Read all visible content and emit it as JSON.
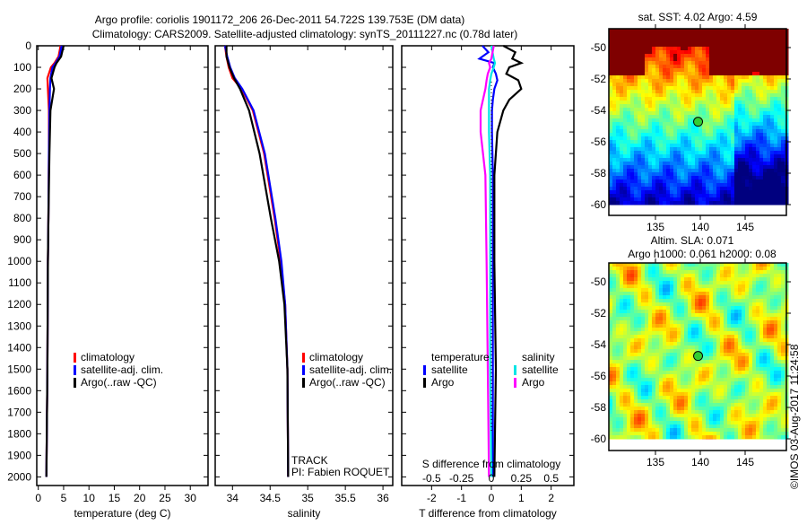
{
  "title_line1": "Argo profile: coriolis 1901172_206 26-Dec-2011 54.722S 139.753E (DM data)",
  "title_line2": "Climatology: CARS2009. Satellite-adjusted climatology: synTS_20111227.nc (0.78d later)",
  "track_label": "TRACK",
  "pi_label": "PI: Fabien ROQUET",
  "credit": "©IMOS 03-Aug-2017 11:24:58",
  "colors": {
    "climatology": "#ff0000",
    "satellite": "#0000ff",
    "argo": "#000000",
    "sal_satellite": "#00e5e5",
    "sal_argo": "#ff00ff"
  },
  "chart_data": [
    {
      "type": "line",
      "id": "temperature",
      "xlabel": "temperature (deg C)",
      "ylabel": "",
      "xlim": [
        -0.3,
        33.5
      ],
      "ylim": [
        2040,
        0
      ],
      "xticks": [
        0,
        5,
        10,
        15,
        20,
        25,
        30
      ],
      "yticks": [
        0,
        100,
        200,
        300,
        400,
        500,
        600,
        700,
        800,
        900,
        1000,
        1100,
        1200,
        1300,
        1400,
        1500,
        1600,
        1700,
        1800,
        1900,
        2000
      ],
      "legend": [
        "climatology",
        "satellite-adj. clim.",
        "Argo(..raw -QC)"
      ],
      "depth": [
        0,
        50,
        80,
        100,
        150,
        200,
        300,
        500,
        800,
        1000,
        1500,
        2000
      ],
      "series": [
        {
          "name": "climatology",
          "values": [
            4.4,
            4.0,
            3.2,
            2.5,
            1.8,
            1.9,
            2.1,
            2.1,
            2.0,
            1.9,
            1.8,
            1.6
          ]
        },
        {
          "name": "satellite-adj. clim.",
          "values": [
            4.6,
            4.2,
            3.4,
            2.8,
            2.4,
            2.3,
            2.2,
            2.1,
            2.0,
            1.9,
            1.8,
            1.6
          ]
        },
        {
          "name": "Argo(..raw -QC)",
          "values": [
            5.0,
            4.5,
            3.6,
            3.2,
            2.6,
            3.1,
            2.4,
            2.2,
            2.0,
            1.9,
            1.8,
            1.6
          ]
        }
      ]
    },
    {
      "type": "line",
      "id": "salinity",
      "xlabel": "salinity",
      "xlim": [
        33.77,
        36.13
      ],
      "ylim": [
        2040,
        0
      ],
      "xticks": [
        34,
        34.5,
        35,
        35.5,
        36
      ],
      "legend": [
        "climatology",
        "satellite-adj. clim.",
        "Argo(..raw -QC)"
      ],
      "depth": [
        0,
        50,
        100,
        150,
        200,
        300,
        500,
        800,
        1000,
        1200,
        1500,
        2000
      ],
      "series": [
        {
          "name": "climatology",
          "values": [
            33.9,
            33.92,
            33.95,
            34.0,
            34.12,
            34.27,
            34.42,
            34.56,
            34.64,
            34.7,
            34.73,
            34.74
          ]
        },
        {
          "name": "satellite-adj. clim.",
          "values": [
            33.9,
            33.93,
            33.97,
            34.03,
            34.13,
            34.28,
            34.43,
            34.57,
            34.65,
            34.7,
            34.73,
            34.74
          ]
        },
        {
          "name": "Argo(..raw -QC)",
          "values": [
            33.92,
            33.92,
            33.96,
            34.02,
            34.1,
            34.22,
            34.36,
            34.51,
            34.62,
            34.69,
            34.73,
            34.74
          ]
        }
      ]
    },
    {
      "type": "line",
      "id": "difference",
      "xlabel": "T difference from climatology",
      "x2label": "S difference from climatology",
      "xlim": [
        -3,
        2.76
      ],
      "ylim": [
        2040,
        0
      ],
      "xticks": [
        -2,
        -1,
        0,
        1,
        2
      ],
      "x2ticks": [
        -0.5,
        -0.25,
        0,
        0.25,
        0.5
      ],
      "legend_headers": [
        "temperature",
        "salinity"
      ],
      "legend": [
        "satellite",
        "Argo",
        "satellite",
        "Argo"
      ],
      "depth": [
        0,
        30,
        60,
        80,
        100,
        130,
        160,
        200,
        250,
        300,
        400,
        600,
        1000,
        1500,
        2000
      ],
      "series": [
        {
          "name": "T satellite",
          "axis": "T",
          "values": [
            -0.3,
            -0.1,
            -0.4,
            0.1,
            0.05,
            0.15,
            0.2,
            0.1,
            0.05,
            0.02,
            0.02,
            0.05,
            0.05,
            0.05,
            0.05
          ]
        },
        {
          "name": "T Argo",
          "axis": "T",
          "values": [
            0.4,
            0.8,
            0.7,
            1.0,
            0.6,
            0.5,
            0.9,
            1.0,
            0.6,
            0.4,
            0.2,
            0.1,
            0.1,
            0.15,
            0.1
          ]
        },
        {
          "name": "S satellite",
          "axis": "S",
          "values": [
            0.0,
            0.01,
            0.02,
            0.03,
            0.02,
            0.0,
            -0.01,
            -0.02,
            -0.02,
            -0.02,
            -0.02,
            -0.01,
            -0.01,
            -0.01,
            0.0
          ]
        },
        {
          "name": "S Argo",
          "axis": "S",
          "values": [
            0.02,
            0.01,
            0.0,
            -0.02,
            -0.01,
            -0.03,
            -0.04,
            -0.05,
            -0.07,
            -0.09,
            -0.09,
            -0.05,
            -0.04,
            -0.03,
            -0.02
          ]
        }
      ]
    },
    {
      "type": "heatmap",
      "id": "sst-map",
      "title": "sat. SST: 4.02 Argo: 4.59",
      "xlim": [
        129.8,
        149.6
      ],
      "ylim": [
        -62.4,
        -48.8
      ],
      "data_lat_min": -60,
      "xticks": [
        135,
        140,
        145
      ],
      "yticks": [
        -50,
        -52,
        -54,
        -56,
        -58,
        -60
      ],
      "marker": {
        "lon": 139.753,
        "lat": -54.722
      }
    },
    {
      "type": "heatmap",
      "id": "sla-map",
      "title_line1": "Altim. SLA: 0.071",
      "title_line2": "Argo h1000: 0.061 h2000: 0.08",
      "xlim": [
        129.8,
        149.6
      ],
      "ylim": [
        -61.2,
        -48.8
      ],
      "data_lat_min": -60,
      "xticks": [
        135,
        140,
        145
      ],
      "yticks": [
        -50,
        -52,
        -54,
        -56,
        -58,
        -60
      ],
      "marker": {
        "lon": 139.753,
        "lat": -54.722
      }
    }
  ]
}
